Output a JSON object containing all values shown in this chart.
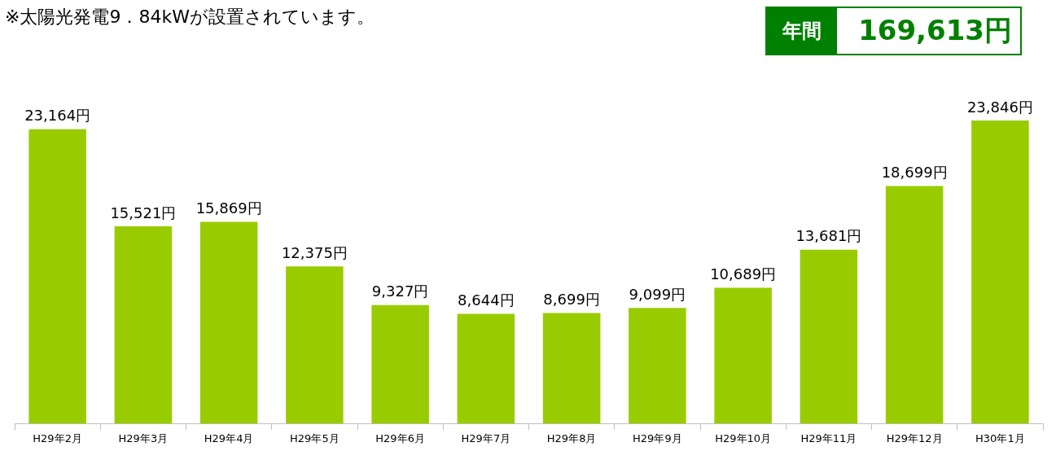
{
  "chart_data": {
    "type": "bar",
    "title": "※太陽光発電9．84kWが設置されています。",
    "categories": [
      "H29年2月",
      "H29年3月",
      "H29年4月",
      "H29年5月",
      "H29年6月",
      "H29年7月",
      "H29年8月",
      "H29年9月",
      "H29年10月",
      "H29年11月",
      "H29年12月",
      "H30年1月"
    ],
    "values": [
      23164,
      15521,
      15869,
      12375,
      9327,
      8644,
      8699,
      9099,
      10689,
      13681,
      18699,
      23846
    ],
    "value_labels": [
      "23,164円",
      "15,521円",
      "15,869円",
      "12,375円",
      "9,327円",
      "8,644円",
      "8,699円",
      "9,099円",
      "10,689円",
      "13,681円",
      "18,699円",
      "23,846円"
    ],
    "color": "#99cc00",
    "tick_labels": "x",
    "annotations": [
      "年間",
      "169,613円"
    ]
  }
}
